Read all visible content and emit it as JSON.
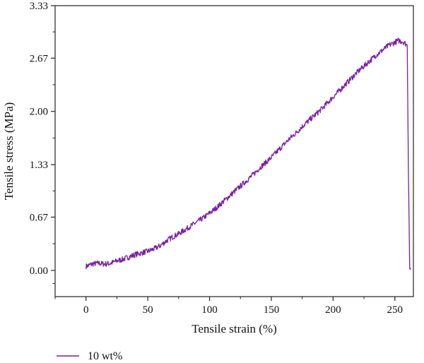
{
  "chart_data": {
    "type": "line",
    "title": "",
    "xlabel": "Tensile strain (%)",
    "ylabel": "Tensile stress (MPa)",
    "xlim": [
      -25,
      265
    ],
    "ylim": [
      -0.33,
      3.33
    ],
    "xticks": [
      0,
      50,
      100,
      150,
      200,
      250
    ],
    "xtick_labels": [
      "0",
      "50",
      "100",
      "150",
      "200",
      "250"
    ],
    "yticks": [
      0.0,
      0.67,
      1.33,
      2.0,
      2.67,
      3.33
    ],
    "ytick_labels": [
      "0.00",
      "0.67",
      "1.33",
      "2.00",
      "2.67",
      "3.33"
    ],
    "grid": false,
    "legend_position": "bottom-left",
    "series": [
      {
        "name": "10 wt%",
        "color": "#7B1FA2",
        "x": [
          0,
          5,
          10,
          15,
          20,
          25,
          30,
          35,
          40,
          45,
          50,
          55,
          60,
          65,
          70,
          75,
          80,
          85,
          90,
          95,
          100,
          105,
          110,
          115,
          120,
          125,
          130,
          135,
          140,
          145,
          150,
          155,
          160,
          165,
          170,
          175,
          180,
          185,
          190,
          195,
          200,
          205,
          210,
          215,
          220,
          225,
          230,
          235,
          240,
          245,
          250,
          253,
          256,
          258,
          260,
          261,
          262,
          263
        ],
        "y": [
          0.05,
          0.08,
          0.09,
          0.08,
          0.09,
          0.12,
          0.14,
          0.17,
          0.2,
          0.22,
          0.24,
          0.27,
          0.31,
          0.37,
          0.42,
          0.46,
          0.51,
          0.56,
          0.61,
          0.66,
          0.72,
          0.78,
          0.85,
          0.92,
          0.99,
          1.06,
          1.13,
          1.2,
          1.28,
          1.35,
          1.42,
          1.5,
          1.58,
          1.66,
          1.73,
          1.81,
          1.88,
          1.95,
          2.02,
          2.1,
          2.18,
          2.26,
          2.34,
          2.42,
          2.5,
          2.57,
          2.64,
          2.71,
          2.77,
          2.83,
          2.87,
          2.89,
          2.88,
          2.86,
          2.83,
          1.2,
          0.05,
          0.02
        ]
      }
    ]
  }
}
